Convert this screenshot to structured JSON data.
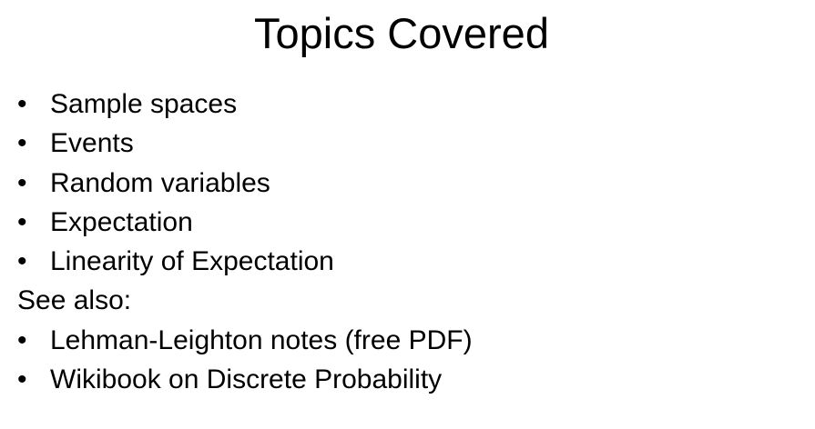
{
  "slide": {
    "title": "Topics Covered",
    "bullet_symbol": "•",
    "topics": [
      "Sample spaces",
      "Events",
      "Random variables",
      "Expectation",
      "Linearity of Expectation"
    ],
    "see_also_label": "See also:",
    "see_also_items": [
      "Lehman-Leighton notes (free PDF)",
      "Wikibook on Discrete Probability"
    ]
  }
}
